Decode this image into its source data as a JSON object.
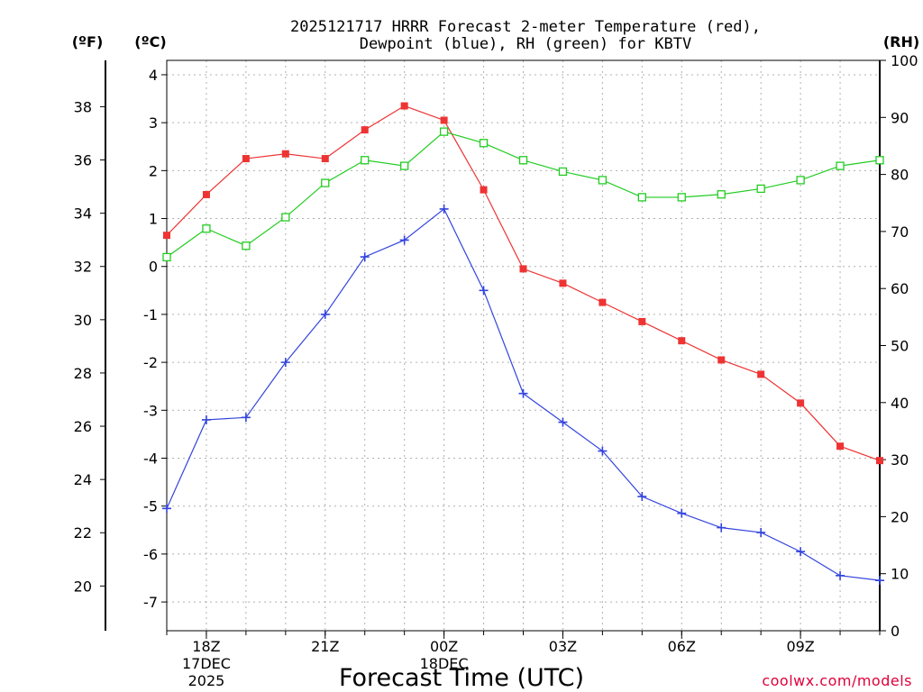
{
  "chart_data": {
    "type": "line",
    "title": "2025121717 HRRR Forecast 2-meter Temperature (red),",
    "subtitle": "Dewpoint (blue), RH (green) for KBTV",
    "xlabel": "Forecast Time (UTC)",
    "credit": "coolwx.com/models",
    "units": {
      "fahrenheit": "(ºF)",
      "celsius": "(ºC)",
      "rh": "(RH)"
    },
    "x": [
      17,
      18,
      19,
      20,
      21,
      22,
      23,
      24,
      25,
      26,
      27,
      28,
      29,
      30,
      31,
      32,
      33,
      34,
      35
    ],
    "xlim": [
      17,
      35
    ],
    "x_ticks": [
      {
        "x": 18,
        "label": "18Z",
        "sub1": "17DEC",
        "sub2": "2025"
      },
      {
        "x": 21,
        "label": "21Z",
        "sub1": "",
        "sub2": ""
      },
      {
        "x": 24,
        "label": "00Z",
        "sub1": "18DEC",
        "sub2": ""
      },
      {
        "x": 27,
        "label": "03Z",
        "sub1": "",
        "sub2": ""
      },
      {
        "x": 30,
        "label": "06Z",
        "sub1": "",
        "sub2": ""
      },
      {
        "x": 33,
        "label": "09Z",
        "sub1": "",
        "sub2": ""
      }
    ],
    "y_celsius": {
      "lim": [
        -7.6,
        4.3
      ],
      "ticks": [
        "4",
        "3",
        "2",
        "1",
        "0",
        "-1",
        "-2",
        "-3",
        "-4",
        "-5",
        "-6",
        "-7"
      ]
    },
    "y_fahrenheit": {
      "ticks": [
        "38",
        "36",
        "34",
        "32",
        "30",
        "28",
        "26",
        "24",
        "22",
        "20"
      ]
    },
    "y_rh": {
      "lim": [
        0,
        100
      ],
      "ticks": [
        "100",
        "90",
        "80",
        "70",
        "60",
        "50",
        "40",
        "30",
        "20",
        "10",
        "0"
      ]
    },
    "series": [
      {
        "name": "Temperature",
        "axis": "celsius",
        "color": "#ee3333",
        "marker": "filled-square",
        "values": [
          0.65,
          1.5,
          2.25,
          2.35,
          2.25,
          2.85,
          3.35,
          3.05,
          1.6,
          -0.05,
          -0.35,
          -0.75,
          -1.15,
          -1.55,
          -1.95,
          -2.25,
          -2.85,
          -3.75,
          -4.05
        ]
      },
      {
        "name": "Dewpoint",
        "axis": "celsius",
        "color": "#3344dd",
        "marker": "plus",
        "values": [
          -5.05,
          -3.2,
          -3.15,
          -2.0,
          -1.0,
          0.2,
          0.55,
          1.2,
          -0.5,
          -2.65,
          -3.25,
          -3.85,
          -4.8,
          -5.15,
          -5.45,
          -5.55,
          -5.95,
          -6.45,
          -6.55
        ]
      },
      {
        "name": "RH",
        "axis": "rh",
        "color": "#22cc22",
        "marker": "open-square",
        "values": [
          65.5,
          70.5,
          67.5,
          72.5,
          78.5,
          82.5,
          81.5,
          87.5,
          85.5,
          82.5,
          80.5,
          79.0,
          76.0,
          76.0,
          76.5,
          77.5,
          79.0,
          81.5,
          82.5
        ]
      }
    ]
  }
}
